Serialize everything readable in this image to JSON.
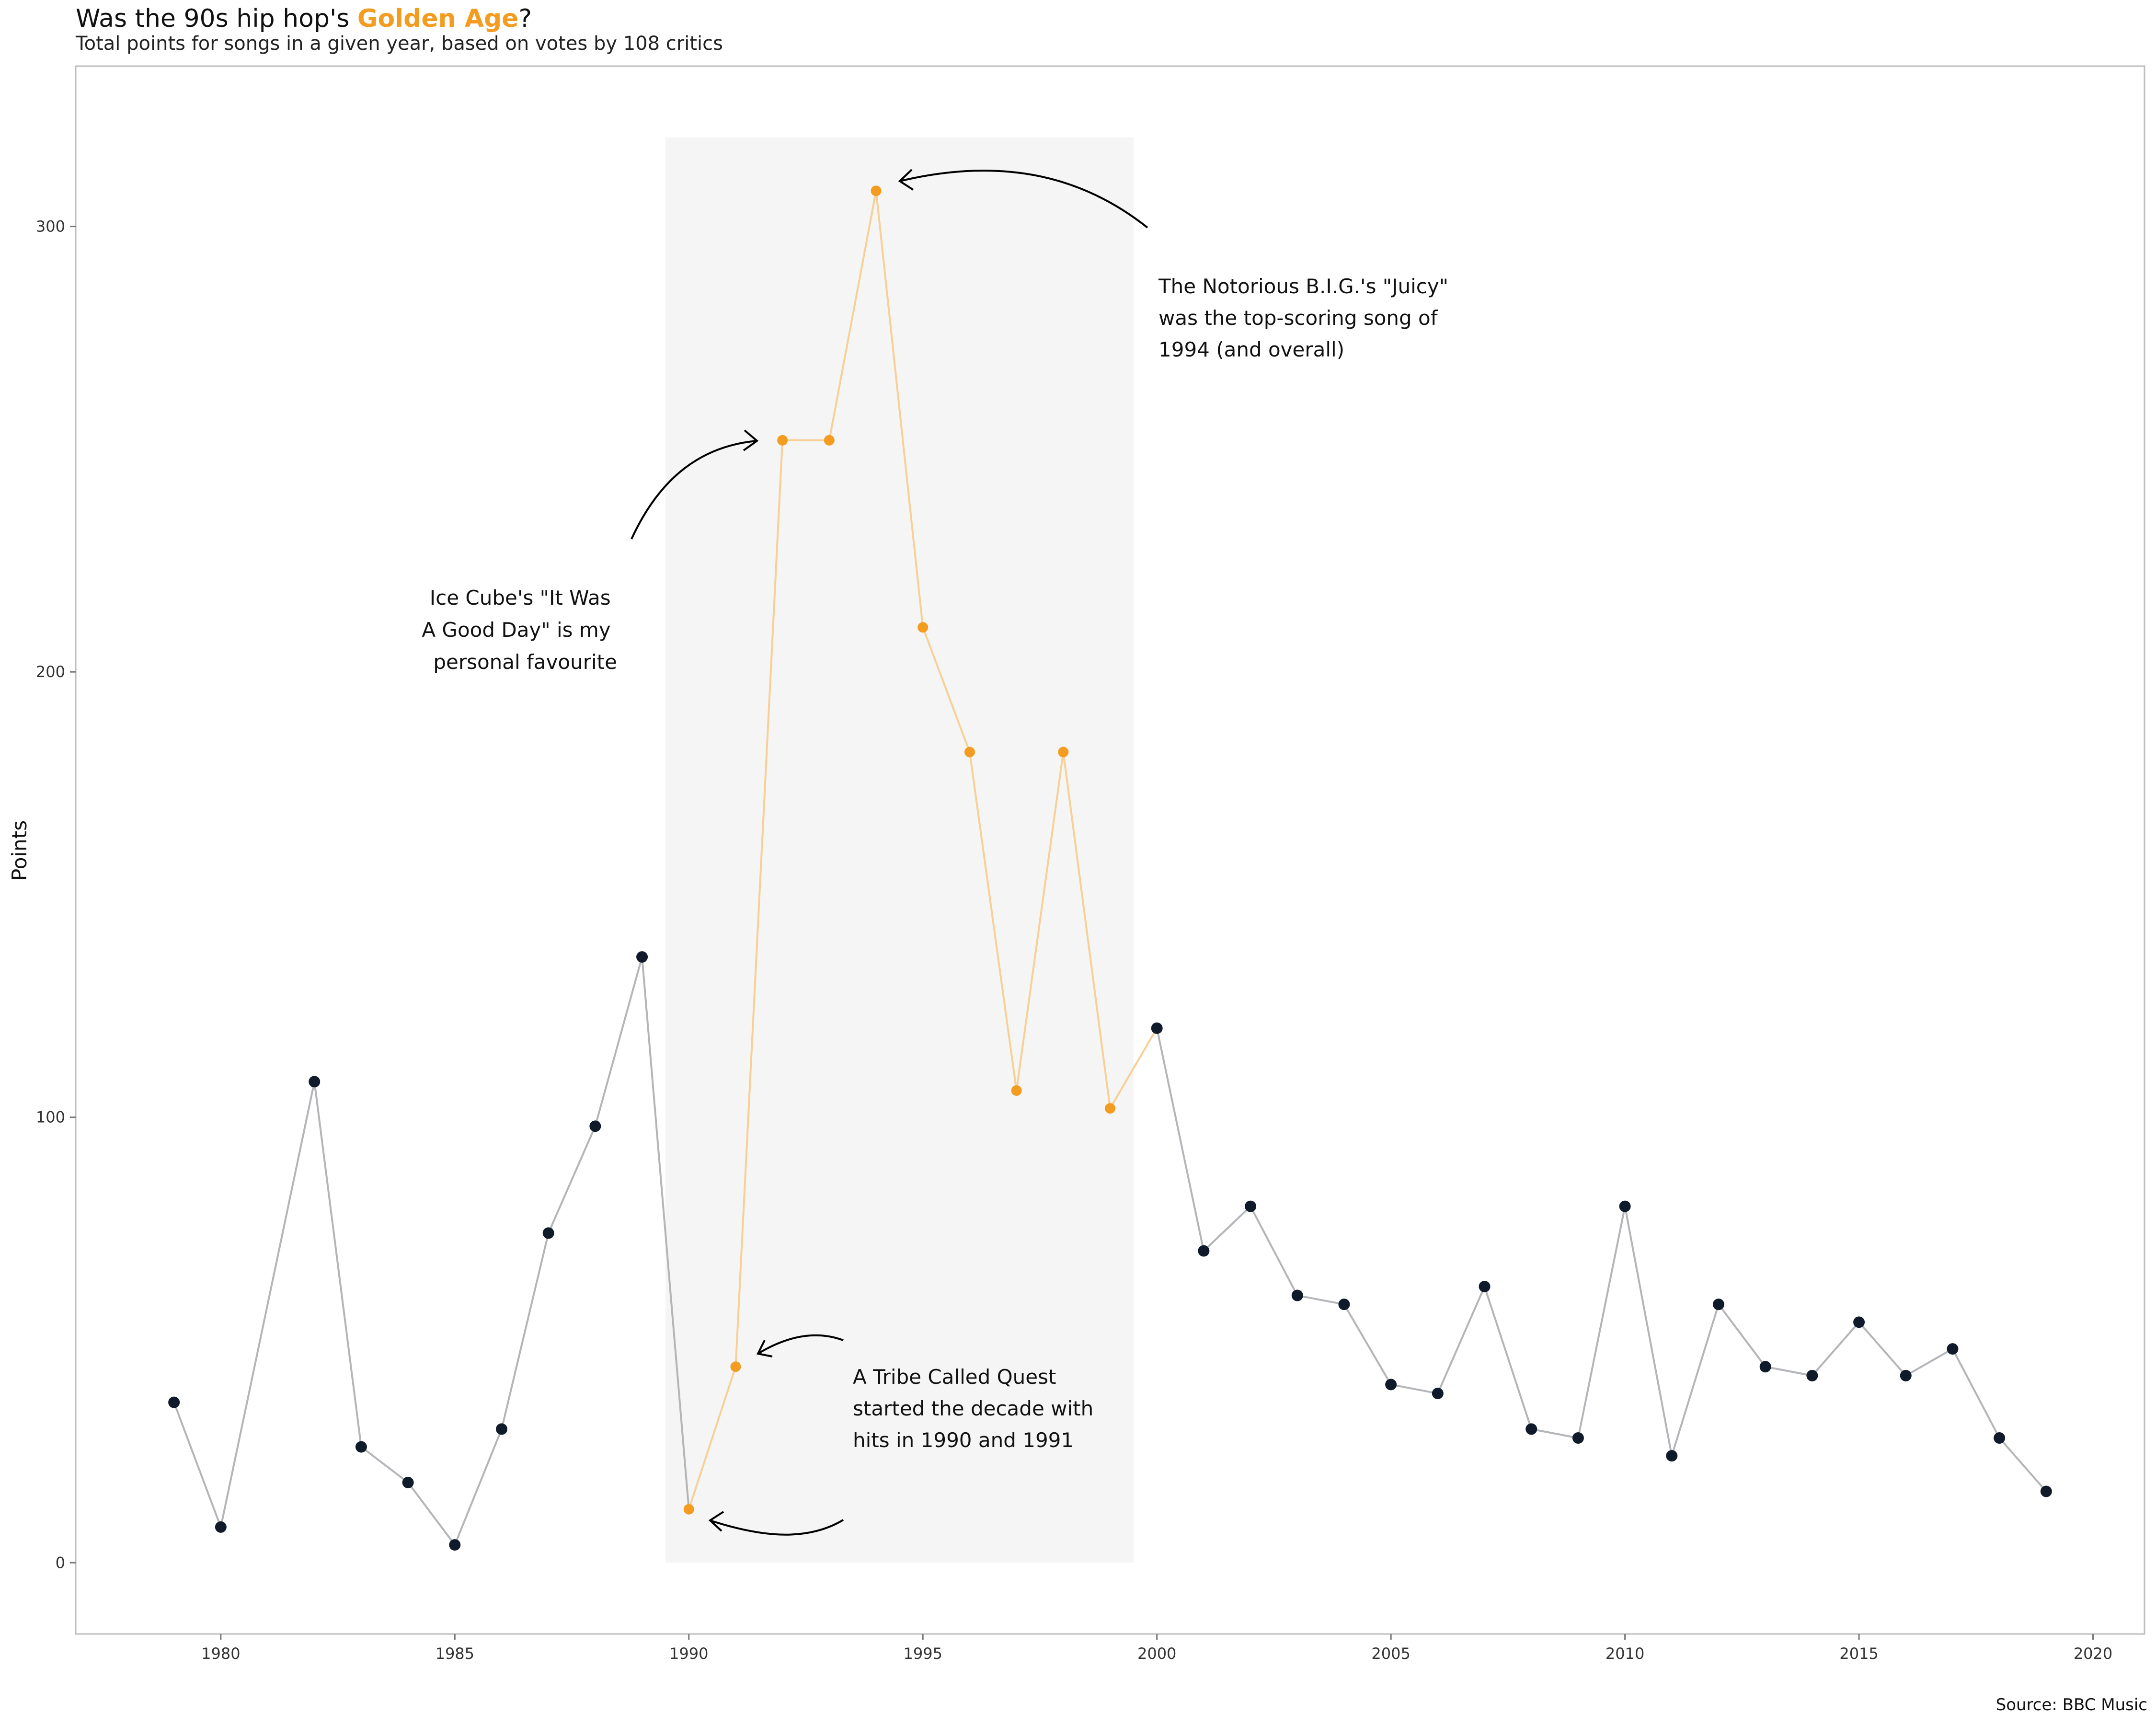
{
  "header": {
    "title_prefix": "Was the 90s hip hop's ",
    "title_highlight": "Golden Age",
    "title_suffix": "?",
    "subtitle": "Total points for songs in a given year, based on votes by 108 critics"
  },
  "footer": {
    "source": "Source: BBC Music"
  },
  "colors": {
    "highlight": "#f39c1f",
    "highlight_line": "#f8cf94",
    "base_point": "#0f1a2b",
    "base_line": "#b3b5b9",
    "shade": "#f5f5f5",
    "axis": "#bdbdbd"
  },
  "chart_data": {
    "type": "line",
    "title": "Was the 90s hip hop's Golden Age?",
    "subtitle": "Total points for songs in a given year, based on votes by 108 critics",
    "xlabel": "",
    "ylabel": "Points",
    "xlim": [
      1976.9,
      2021.1
    ],
    "ylim": [
      -16,
      336
    ],
    "x_ticks": [
      1980,
      1985,
      1990,
      1995,
      2000,
      2005,
      2010,
      2015,
      2020
    ],
    "y_ticks": [
      0,
      100,
      200,
      300
    ],
    "grid": false,
    "highlight_range": [
      1989.5,
      1999.5
    ],
    "shade_ymax": 320,
    "x": [
      1979,
      1980,
      1982,
      1983,
      1984,
      1985,
      1986,
      1987,
      1988,
      1989,
      1990,
      1991,
      1992,
      1993,
      1994,
      1995,
      1996,
      1997,
      1998,
      1999,
      2000,
      2001,
      2002,
      2003,
      2004,
      2005,
      2006,
      2007,
      2008,
      2009,
      2010,
      2011,
      2012,
      2013,
      2014,
      2015,
      2016,
      2017,
      2018,
      2019
    ],
    "y": [
      36,
      8,
      108,
      26,
      18,
      4,
      30,
      74,
      98,
      136,
      12,
      44,
      252,
      252,
      308,
      210,
      182,
      106,
      182,
      102,
      120,
      70,
      80,
      60,
      58,
      40,
      38,
      62,
      30,
      28,
      80,
      24,
      58,
      44,
      42,
      54,
      42,
      48,
      28,
      16
    ],
    "annotations": [
      {
        "lines": [
          "The Notorious B.I.G.'s \"Juicy\"",
          "was the top-scoring song of",
          "1994 (and overall)"
        ]
      },
      {
        "lines": [
          "Ice Cube's \"It Was",
          "A Good Day\" is my",
          "personal favourite"
        ]
      },
      {
        "lines": [
          "A Tribe Called Quest",
          "started the decade with",
          "hits in 1990 and 1991"
        ]
      }
    ]
  }
}
